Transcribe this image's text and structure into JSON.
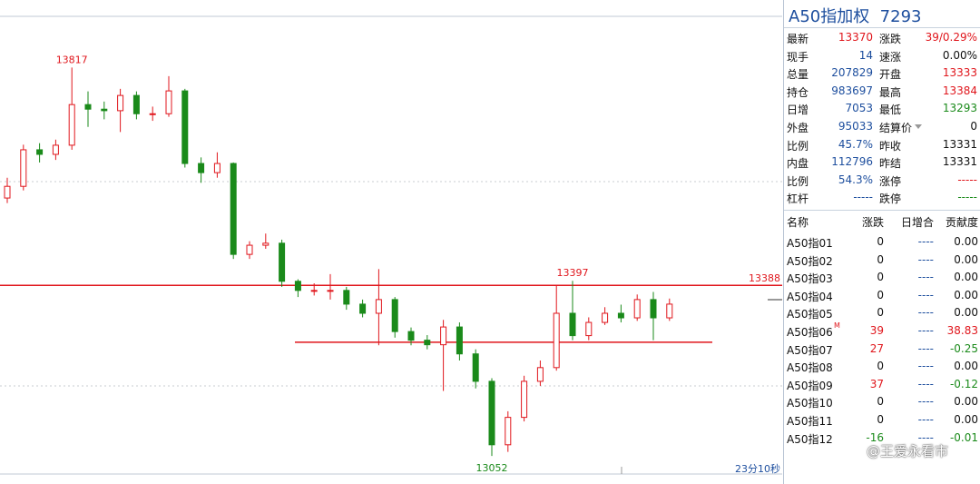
{
  "chart_data": {
    "type": "candlestick",
    "open": [
      13560,
      13583,
      13655,
      13646,
      13664,
      13744,
      13735,
      13732,
      13762,
      13726,
      13726,
      13771,
      13628,
      13610,
      13628,
      13449,
      13467,
      13471,
      13396,
      13378,
      13378,
      13378,
      13351,
      13333,
      13360,
      13297,
      13280,
      13271,
      13306,
      13253,
      13199,
      13074,
      13128,
      13199,
      13226,
      13333,
      13289,
      13315,
      13333,
      13324,
      13360,
      13324
    ],
    "high": [
      13600,
      13665,
      13668,
      13675,
      13817,
      13770,
      13750,
      13775,
      13770,
      13740,
      13800,
      13775,
      13640,
      13650,
      13630,
      13475,
      13490,
      13478,
      13400,
      13392,
      13410,
      13385,
      13360,
      13420,
      13365,
      13305,
      13290,
      13320,
      13315,
      13262,
      13205,
      13140,
      13210,
      13240,
      13388,
      13397,
      13325,
      13345,
      13350,
      13370,
      13375,
      13362
    ],
    "low": [
      13550,
      13575,
      13630,
      13635,
      13655,
      13700,
      13715,
      13690,
      13715,
      13712,
      13720,
      13620,
      13590,
      13600,
      13440,
      13440,
      13460,
      13385,
      13365,
      13368,
      13360,
      13340,
      13325,
      13270,
      13285,
      13270,
      13262,
      13180,
      13240,
      13185,
      13052,
      13060,
      13120,
      13190,
      13220,
      13280,
      13280,
      13310,
      13315,
      13318,
      13280,
      13318
    ],
    "close": [
      13583,
      13655,
      13646,
      13664,
      13744,
      13735,
      13732,
      13762,
      13726,
      13726,
      13771,
      13628,
      13610,
      13628,
      13449,
      13467,
      13471,
      13396,
      13378,
      13378,
      13378,
      13351,
      13333,
      13360,
      13297,
      13280,
      13271,
      13306,
      13253,
      13199,
      13074,
      13128,
      13199,
      13226,
      13333,
      13289,
      13315,
      13333,
      13324,
      13360,
      13324,
      13351
    ],
    "ylim": [
      13020,
      13950
    ],
    "level": 13388,
    "support": 13276,
    "high_label": 13817,
    "low_label": 13052,
    "peak_label": 13397,
    "up_color": "#e0161c",
    "down_color": "#1a8a1a",
    "timer": "23分10秒"
  },
  "panel": {
    "title": "A50指加权",
    "code": "7293",
    "quotes": [
      [
        {
          "label": "最新",
          "value": 13370,
          "color": "red"
        },
        {
          "label": "涨跌",
          "value": "39/0.29%",
          "color": "red"
        }
      ],
      [
        {
          "label": "现手",
          "value": 14,
          "color": "blue"
        },
        {
          "label": "速涨",
          "value": "0.00%",
          "color": "black"
        }
      ],
      [
        {
          "label": "总量",
          "value": 207829,
          "color": "blue"
        },
        {
          "label": "开盘",
          "value": 13333,
          "color": "red"
        }
      ],
      [
        {
          "label": "持仓",
          "value": 983697,
          "color": "blue"
        },
        {
          "label": "最高",
          "value": 13384,
          "color": "red"
        }
      ],
      [
        {
          "label": "日增",
          "value": 7053,
          "color": "blue"
        },
        {
          "label": "最低",
          "value": 13293,
          "color": "green"
        }
      ],
      [
        {
          "label": "外盘",
          "value": 95033,
          "color": "blue"
        },
        {
          "label": "结算价",
          "value": 0,
          "color": "black"
        }
      ],
      [
        {
          "label": "比例",
          "value": "45.7%",
          "color": "blue"
        },
        {
          "label": "昨收",
          "value": 13331,
          "color": "black"
        }
      ],
      [
        {
          "label": "内盘",
          "value": 112796,
          "color": "blue"
        },
        {
          "label": "昨结",
          "value": 13331,
          "color": "black"
        }
      ],
      [
        {
          "label": "比例",
          "value": "54.3%",
          "color": "blue"
        },
        {
          "label": "涨停",
          "value": "-----",
          "color": "red"
        }
      ],
      [
        {
          "label": "杠杆",
          "value": "-----",
          "color": "blue"
        },
        {
          "label": "跌停",
          "value": "-----",
          "color": "green"
        }
      ]
    ],
    "columns": [
      "名称",
      "涨跌",
      "日增合",
      "贡献度"
    ],
    "rows": [
      [
        "A50指01",
        0,
        "----",
        "0.00"
      ],
      [
        "A50指02",
        0,
        "----",
        "0.00"
      ],
      [
        "A50指03",
        0,
        "----",
        "0.00"
      ],
      [
        "A50指04",
        0,
        "----",
        "0.00"
      ],
      [
        "A50指05",
        0,
        "----",
        "0.00"
      ],
      [
        "A50指06",
        39,
        "----",
        "38.83"
      ],
      [
        "A50指07",
        27,
        "----",
        "-0.25"
      ],
      [
        "A50指08",
        0,
        "----",
        "0.00"
      ],
      [
        "A50指09",
        37,
        "----",
        "-0.12"
      ],
      [
        "A50指10",
        0,
        "----",
        "0.00"
      ],
      [
        "A50指11",
        0,
        "----",
        "0.00"
      ],
      [
        "A50指12",
        -16,
        "----",
        "-0.01"
      ]
    ],
    "badge": "M",
    "watermark": "@王爱永看市"
  }
}
